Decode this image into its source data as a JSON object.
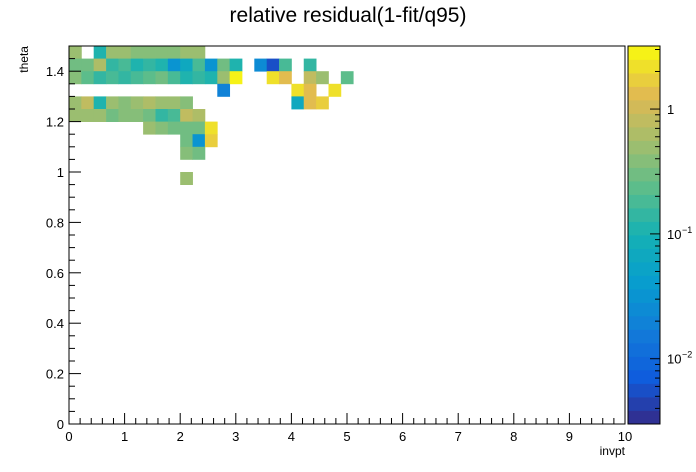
{
  "chart_data": {
    "type": "heatmap",
    "title": "relative residual(1-fit/q95)",
    "xlabel": "invpt",
    "ylabel": "theta",
    "xlim": [
      0,
      10
    ],
    "ylim": [
      0,
      1.5
    ],
    "x_ticks": [
      "0",
      "1",
      "2",
      "3",
      "4",
      "5",
      "6",
      "7",
      "8",
      "9",
      "10"
    ],
    "y_ticks": [
      "0",
      "0.2",
      "0.4",
      "0.6",
      "0.8",
      "1",
      "1.2",
      "1.4"
    ],
    "colorbar": {
      "scale": "log",
      "range": [
        0.003,
        3.2
      ],
      "tick_labels": [
        {
          "base": "10",
          "exp": "−2",
          "value": 0.01
        },
        {
          "base": "10",
          "exp": "−1",
          "value": 0.1
        },
        {
          "base": "1",
          "exp": "",
          "value": 1
        }
      ]
    },
    "bin_width_x": 0.2222,
    "bin_width_y": 0.05,
    "cells": [
      [
        0.0,
        1.45,
        0.45
      ],
      [
        0.0,
        1.4,
        0.3
      ],
      [
        0.0,
        1.35,
        0.4
      ],
      [
        0.0,
        1.25,
        0.5
      ],
      [
        0.0,
        1.2,
        0.45
      ],
      [
        0.222,
        1.4,
        0.3
      ],
      [
        0.222,
        1.35,
        0.25
      ],
      [
        0.222,
        1.25,
        0.9
      ],
      [
        0.222,
        1.2,
        0.5
      ],
      [
        0.444,
        1.45,
        0.12
      ],
      [
        0.444,
        1.4,
        0.7
      ],
      [
        0.444,
        1.35,
        0.15
      ],
      [
        0.444,
        1.25,
        0.12
      ],
      [
        0.444,
        1.2,
        0.45
      ],
      [
        0.667,
        1.45,
        0.5
      ],
      [
        0.667,
        1.4,
        0.15
      ],
      [
        0.667,
        1.35,
        0.2
      ],
      [
        0.667,
        1.25,
        0.45
      ],
      [
        0.667,
        1.2,
        0.3
      ],
      [
        0.889,
        1.45,
        0.45
      ],
      [
        0.889,
        1.4,
        0.2
      ],
      [
        0.889,
        1.35,
        0.15
      ],
      [
        0.889,
        1.25,
        0.4
      ],
      [
        0.889,
        1.2,
        0.35
      ],
      [
        1.111,
        1.45,
        0.35
      ],
      [
        1.111,
        1.4,
        0.12
      ],
      [
        1.111,
        1.35,
        0.2
      ],
      [
        1.111,
        1.25,
        0.5
      ],
      [
        1.111,
        1.2,
        0.4
      ],
      [
        1.333,
        1.45,
        0.4
      ],
      [
        1.333,
        1.4,
        0.15
      ],
      [
        1.333,
        1.35,
        0.25
      ],
      [
        1.333,
        1.25,
        0.6
      ],
      [
        1.333,
        1.2,
        0.3
      ],
      [
        1.333,
        1.15,
        0.45
      ],
      [
        1.556,
        1.45,
        0.35
      ],
      [
        1.556,
        1.4,
        0.1
      ],
      [
        1.556,
        1.35,
        0.3
      ],
      [
        1.556,
        1.25,
        0.5
      ],
      [
        1.556,
        1.2,
        0.15
      ],
      [
        1.556,
        1.15,
        0.4
      ],
      [
        1.778,
        1.45,
        0.4
      ],
      [
        1.778,
        1.4,
        0.03
      ],
      [
        1.778,
        1.35,
        0.2
      ],
      [
        1.778,
        1.25,
        0.45
      ],
      [
        1.778,
        1.2,
        0.2
      ],
      [
        1.778,
        1.15,
        0.3
      ],
      [
        2.0,
        1.45,
        0.45
      ],
      [
        2.0,
        1.4,
        0.06
      ],
      [
        2.0,
        1.35,
        0.12
      ],
      [
        2.0,
        1.25,
        0.4
      ],
      [
        2.0,
        1.2,
        0.8
      ],
      [
        2.0,
        1.15,
        0.3
      ],
      [
        2.0,
        1.1,
        0.3
      ],
      [
        2.0,
        1.05,
        0.35
      ],
      [
        2.0,
        0.95,
        0.5
      ],
      [
        2.222,
        1.45,
        0.5
      ],
      [
        2.222,
        1.4,
        0.2
      ],
      [
        2.222,
        1.35,
        0.15
      ],
      [
        2.222,
        1.2,
        0.6
      ],
      [
        2.222,
        1.15,
        0.3
      ],
      [
        2.222,
        1.1,
        0.03
      ],
      [
        2.222,
        1.05,
        0.3
      ],
      [
        2.444,
        1.4,
        0.03
      ],
      [
        2.444,
        1.35,
        0.1
      ],
      [
        2.444,
        1.15,
        2.2
      ],
      [
        2.444,
        1.1,
        1.6
      ],
      [
        2.667,
        1.4,
        0.3
      ],
      [
        2.667,
        1.35,
        0.45
      ],
      [
        2.667,
        1.3,
        0.02
      ],
      [
        2.889,
        1.4,
        0.1
      ],
      [
        2.889,
        1.35,
        2.5
      ],
      [
        3.333,
        1.4,
        0.025
      ],
      [
        3.556,
        1.4,
        0.005
      ],
      [
        3.556,
        1.35,
        2.0
      ],
      [
        3.778,
        1.4,
        0.2
      ],
      [
        3.778,
        1.35,
        1.5
      ],
      [
        4.0,
        1.3,
        2.2
      ],
      [
        4.0,
        1.25,
        0.06
      ],
      [
        4.222,
        1.4,
        0.15
      ],
      [
        4.222,
        1.35,
        0.8
      ],
      [
        4.222,
        1.3,
        1.2
      ],
      [
        4.222,
        1.25,
        1.4
      ],
      [
        4.444,
        1.35,
        0.5
      ],
      [
        4.444,
        1.25,
        1.8
      ],
      [
        4.667,
        1.3,
        2.0
      ],
      [
        4.889,
        1.35,
        0.25
      ]
    ]
  }
}
